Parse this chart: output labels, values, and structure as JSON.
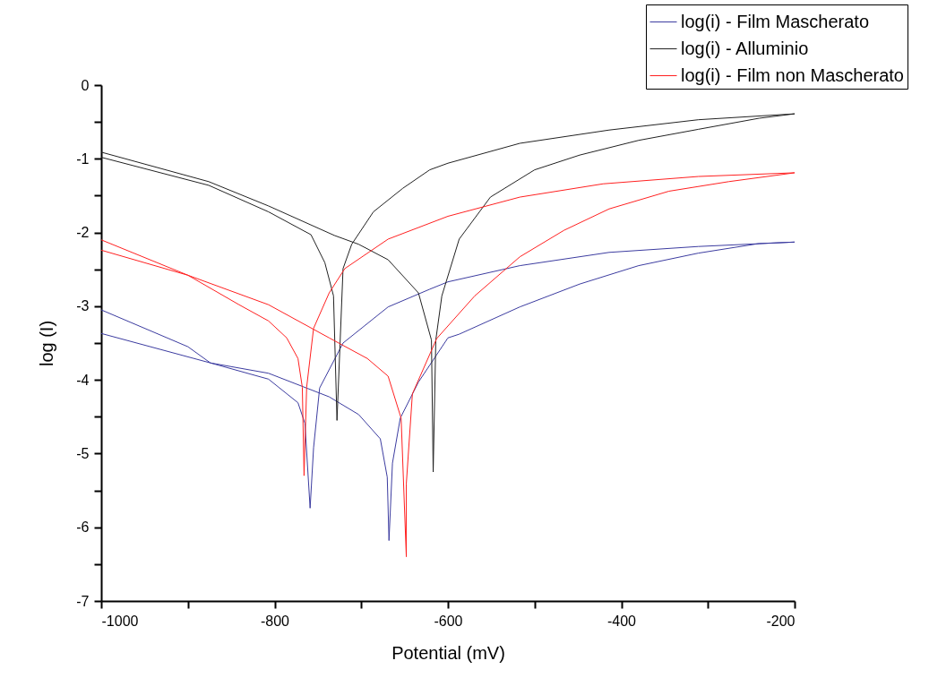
{
  "chart_data": {
    "type": "line",
    "xlabel": "Potential (mV)",
    "ylabel": "log (I)",
    "xlim": [
      -1000,
      -200
    ],
    "ylim": [
      -7,
      0
    ],
    "xticks": [
      -1000,
      {
        "value": -900,
        "label": null
      },
      -800,
      {
        "value": -700,
        "label": null
      },
      -600,
      {
        "value": -500,
        "label": null
      },
      -400,
      {
        "value": -300,
        "label": null
      },
      -200
    ],
    "yticks": [
      -7,
      {
        "value": -6.5,
        "label": null
      },
      -6,
      {
        "value": -5.5,
        "label": null
      },
      -5,
      {
        "value": -4.5,
        "label": null
      },
      -4,
      {
        "value": -3.5,
        "label": null
      },
      -3,
      {
        "value": -2.5,
        "label": null
      },
      -2,
      {
        "value": -1.5,
        "label": null
      },
      -1,
      {
        "value": -0.5,
        "label": null
      },
      0
    ],
    "grid": false,
    "legend": "top right",
    "line_style": "solid",
    "marker": "none",
    "series": [
      {
        "name": "log(i) - Film Mascherato",
        "color": "#3c3ca0",
        "x": [
          -1000,
          -900,
          -874,
          -807,
          -773,
          -765,
          -759,
          -755,
          -748,
          -721,
          -669,
          -621,
          -600,
          -517,
          -414,
          -311,
          -200,
          -241,
          -311,
          -380,
          -448,
          -517,
          -587,
          -600,
          -634,
          -655,
          -664,
          -668,
          -670,
          -678,
          -703,
          -737,
          -807,
          -874,
          -1000
        ],
        "values": [
          -3.05,
          -3.55,
          -3.77,
          -3.99,
          -4.31,
          -4.59,
          -5.74,
          -4.92,
          -4.11,
          -3.5,
          -3.01,
          -2.77,
          -2.67,
          -2.45,
          -2.27,
          -2.19,
          -2.13,
          -2.15,
          -2.28,
          -2.45,
          -2.7,
          -3.01,
          -3.38,
          -3.43,
          -4.03,
          -4.52,
          -5.13,
          -6.18,
          -5.32,
          -4.8,
          -4.47,
          -4.23,
          -3.91,
          -3.77,
          -3.37
        ]
      },
      {
        "name": "log(i) - Alluminio",
        "color": "#222222",
        "x": [
          -1000,
          -876,
          -807,
          -758,
          -742,
          -732,
          -728,
          -721,
          -711,
          -686,
          -652,
          -621,
          -600,
          -517,
          -414,
          -311,
          -200,
          -241,
          -311,
          -380,
          -448,
          -500,
          -551,
          -587,
          -607,
          -614,
          -617,
          -619,
          -634,
          -669,
          -703,
          -731,
          -807,
          -876,
          -1000
        ],
        "values": [
          -0.98,
          -1.36,
          -1.72,
          -2.03,
          -2.41,
          -2.86,
          -4.55,
          -2.49,
          -2.16,
          -1.72,
          -1.4,
          -1.15,
          -1.06,
          -0.79,
          -0.61,
          -0.47,
          -0.39,
          -0.45,
          -0.6,
          -0.75,
          -0.95,
          -1.15,
          -1.52,
          -2.09,
          -2.86,
          -3.46,
          -5.25,
          -3.46,
          -2.82,
          -2.37,
          -2.16,
          -2.04,
          -1.64,
          -1.31,
          -0.91
        ]
      },
      {
        "name": "log(i) - Film non Mascherato",
        "color": "#ff2020",
        "x": [
          -1000,
          -900,
          -841,
          -807,
          -786,
          -773,
          -768,
          -766,
          -763,
          -755,
          -737,
          -719,
          -669,
          -600,
          -517,
          -421,
          -311,
          -200,
          -276,
          -345,
          -414,
          -466,
          -517,
          -569,
          -613,
          -641,
          -648,
          -648,
          -654,
          -669,
          -693,
          -737,
          -807,
          -900,
          -1000
        ],
        "values": [
          -2.1,
          -2.58,
          -2.98,
          -3.2,
          -3.43,
          -3.71,
          -4.1,
          -5.3,
          -4.1,
          -3.3,
          -2.82,
          -2.49,
          -2.09,
          -1.78,
          -1.52,
          -1.34,
          -1.24,
          -1.19,
          -1.31,
          -1.44,
          -1.68,
          -1.97,
          -2.33,
          -2.86,
          -3.44,
          -4.19,
          -5.41,
          -6.4,
          -4.52,
          -3.95,
          -3.71,
          -3.43,
          -2.98,
          -2.58,
          -2.24
        ]
      }
    ]
  }
}
